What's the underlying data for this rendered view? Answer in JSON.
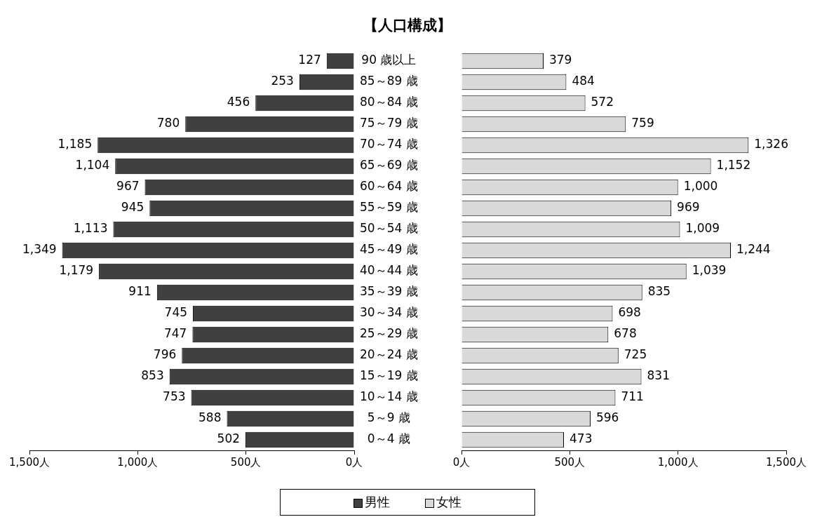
{
  "chart_data": [
    {
      "type": "bar",
      "orientation": "horizontal",
      "title": "【人口構成】",
      "legend": "bottom",
      "categories": [
        "90 歳以上",
        "85～89 歳",
        "80～84 歳",
        "75～79 歳",
        "70～74 歳",
        "65～69 歳",
        "60～64 歳",
        "55～59 歳",
        "50～54 歳",
        "45～49 歳",
        "40～44 歳",
        "35～39 歳",
        "30～34 歳",
        "25～29 歳",
        "20～24 歳",
        "15～19 歳",
        "10～14 歳",
        "5～9 歳",
        "0～4 歳"
      ],
      "series": [
        {
          "name": "男性",
          "color": "#404040",
          "values": [
            127,
            253,
            456,
            780,
            1185,
            1104,
            967,
            945,
            1113,
            1349,
            1179,
            911,
            745,
            747,
            796,
            853,
            753,
            588,
            502
          ],
          "value_labels": [
            "127",
            "253",
            "456",
            "780",
            "1,185",
            "1,104",
            "967",
            "945",
            "1,113",
            "1,349",
            "1,179",
            "911",
            "745",
            "747",
            "796",
            "853",
            "753",
            "588",
            "502"
          ]
        }
      ],
      "xlim": [
        1500,
        0
      ],
      "xticks": [
        {
          "value": 1500,
          "label": "1,500人"
        },
        {
          "value": 1000,
          "label": "1,000人"
        },
        {
          "value": 500,
          "label": "500人"
        },
        {
          "value": 0,
          "label": "0人"
        }
      ]
    },
    {
      "type": "bar",
      "orientation": "horizontal",
      "legend": "bottom",
      "categories": [
        null,
        null,
        null,
        null,
        null,
        null,
        null,
        null,
        null,
        null,
        null,
        null,
        null,
        null,
        null,
        null,
        null,
        null,
        null
      ],
      "series": [
        {
          "name": "女性",
          "color": "#d9d9d9",
          "values": [
            379,
            484,
            572,
            759,
            1326,
            1152,
            1000,
            969,
            1009,
            1244,
            1039,
            835,
            698,
            678,
            725,
            831,
            711,
            596,
            473
          ],
          "value_labels": [
            "379",
            "484",
            "572",
            "759",
            "1,326",
            "1,152",
            "1,000",
            "969",
            "1,009",
            "1,244",
            "1,039",
            "835",
            "698",
            "678",
            "725",
            "831",
            "711",
            "596",
            "473"
          ]
        }
      ],
      "xlim": [
        0,
        1500
      ],
      "xticks": [
        {
          "value": 0,
          "label": "0人"
        },
        {
          "value": 500,
          "label": "500人"
        },
        {
          "value": 1000,
          "label": "1,000人"
        },
        {
          "value": 1500,
          "label": "1,500人"
        }
      ]
    }
  ]
}
